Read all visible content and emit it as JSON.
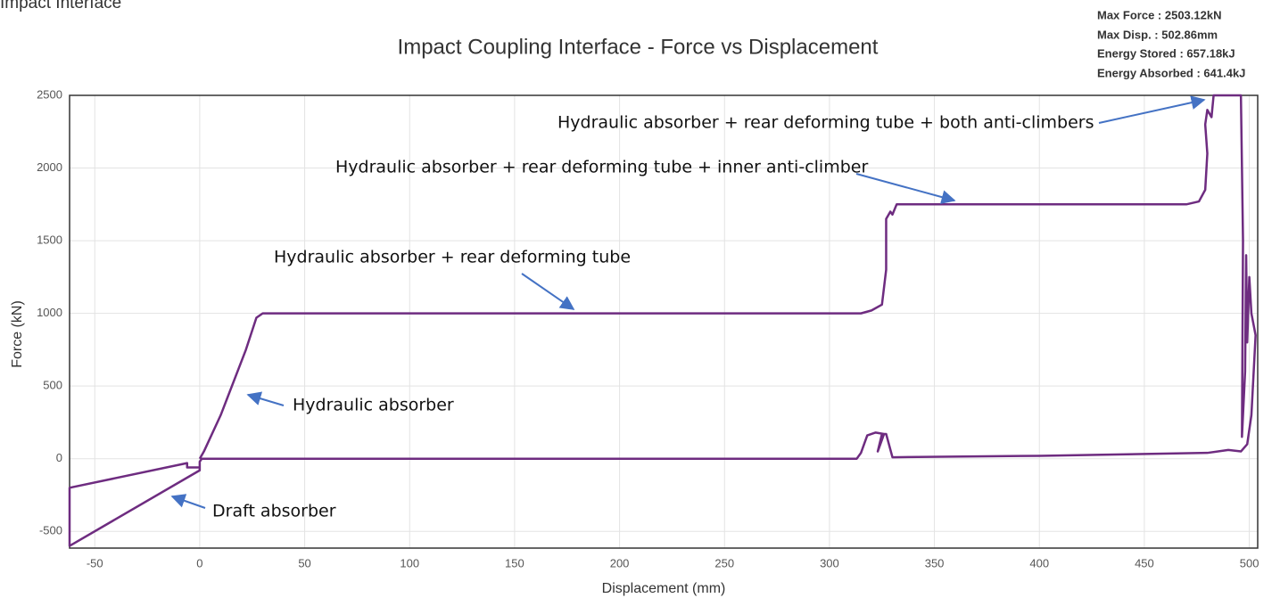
{
  "header": "Impact Interface",
  "stats": [
    "Max Force : 2503.12kN",
    "Max Disp. : 502.86mm",
    "Energy Stored : 657.18kJ",
    "Energy Absorbed : 641.4kJ"
  ],
  "chart_data": {
    "type": "line",
    "title": "Impact Coupling Interface - Force vs Displacement",
    "x_label": "Displacement (mm)",
    "y_label": "Force (kN)",
    "xlim": [
      -62,
      504
    ],
    "ylim": [
      -615,
      2500
    ],
    "xticks": [
      -50,
      0,
      50,
      100,
      150,
      200,
      250,
      300,
      350,
      400,
      450,
      500
    ],
    "yticks": [
      -500,
      0,
      500,
      1000,
      1500,
      2000,
      2500
    ],
    "grid": true,
    "series": [
      {
        "color": "#6e2c80",
        "x": [
          0,
          2,
          10,
          22,
          27,
          30,
          315,
          320,
          325,
          327,
          327,
          329,
          330,
          332,
          470,
          476,
          479,
          480,
          479,
          480,
          482,
          483,
          496,
          497,
          496.5,
          498,
          498.5,
          499,
          500,
          501,
          503,
          501,
          499,
          496,
          490,
          480,
          400,
          330,
          327,
          325,
          323,
          326,
          322,
          318,
          315,
          313,
          100,
          1,
          0,
          0,
          -62,
          -62,
          -6,
          -6,
          0
        ],
        "values": [
          0,
          50,
          300,
          750,
          970,
          1000,
          1000,
          1020,
          1060,
          1300,
          1650,
          1700,
          1680,
          1750,
          1750,
          1770,
          1850,
          2100,
          2300,
          2400,
          2350,
          2500,
          2500,
          1500,
          150,
          600,
          1400,
          800,
          1250,
          1000,
          850,
          300,
          100,
          50,
          60,
          40,
          20,
          10,
          170,
          170,
          50,
          170,
          180,
          160,
          40,
          0,
          0,
          0,
          -20,
          -80,
          -600,
          -200,
          -30,
          -60,
          -60
        ]
      }
    ],
    "annotations": [
      "Hydraulic absorber + rear deforming tube + both anti-climbers",
      "Hydraulic absorber + rear deforming tube + inner anti-climber",
      "Hydraulic absorber + rear deforming tube",
      "Hydraulic absorber",
      "Draft absorber"
    ]
  }
}
